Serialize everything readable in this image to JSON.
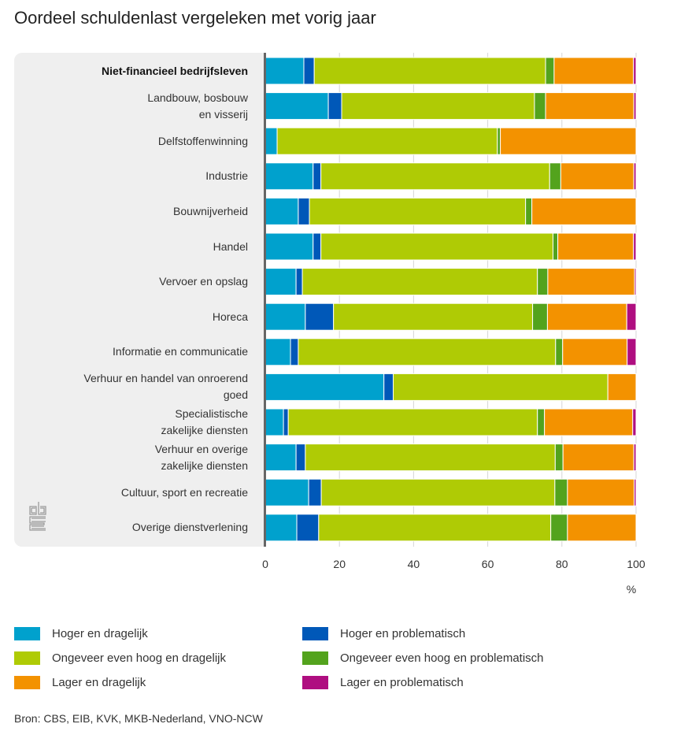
{
  "chart_data": {
    "type": "bar",
    "orientation": "horizontal",
    "stacked": true,
    "title": "Oordeel schuldenlast vergeleken met vorig jaar",
    "xlabel": "%",
    "ylabel": "",
    "xlim": [
      0,
      100
    ],
    "xticks": [
      "0",
      "20",
      "40",
      "60",
      "80",
      "100"
    ],
    "grid": true,
    "legend_position": "bottom",
    "categories": [
      "Niet-financieel bedrijfsleven",
      "Landbouw, bosbouw\nen visserij",
      "Delfstoffenwinning",
      "Industrie",
      "Bouwnijverheid",
      "Handel",
      "Vervoer en opslag",
      "Horeca",
      "Informatie en communicatie",
      "Verhuur en handel van onroerend\ngoed",
      "Specialistische\nzakelijke diensten",
      "Verhuur en overige\nzakelijke diensten",
      "Cultuur, sport en recreatie",
      "Overige dienstverlening"
    ],
    "bold_categories": [
      0
    ],
    "series": [
      {
        "name": "Hoger en dragelijk",
        "color": "#00a1cd",
        "values": [
          10.4,
          17.0,
          3.2,
          12.9,
          8.9,
          12.9,
          8.3,
          10.8,
          6.8,
          32.0,
          4.9,
          8.3,
          11.7,
          8.5
        ]
      },
      {
        "name": "Hoger en problematisch",
        "color": "#0058b8",
        "values": [
          2.8,
          3.6,
          0.0,
          2.1,
          3.0,
          2.1,
          1.7,
          7.6,
          2.1,
          2.5,
          1.3,
          2.5,
          3.4,
          5.9
        ]
      },
      {
        "name": "Ongeveer even hoog en dragelijk",
        "color": "#afcb05",
        "values": [
          62.4,
          52.0,
          59.4,
          61.7,
          58.3,
          62.6,
          63.4,
          53.7,
          69.4,
          57.9,
          67.2,
          67.4,
          63.0,
          62.6
        ]
      },
      {
        "name": "Ongeveer even hoog en problematisch",
        "color": "#53a31d",
        "values": [
          2.3,
          3.0,
          0.8,
          3.0,
          1.7,
          1.3,
          2.8,
          4.0,
          1.9,
          0.0,
          1.9,
          2.1,
          3.4,
          4.5
        ]
      },
      {
        "name": "Lager en dragelijk",
        "color": "#f39200",
        "values": [
          21.4,
          23.8,
          36.6,
          19.7,
          28.1,
          20.4,
          23.4,
          21.4,
          17.4,
          7.6,
          23.8,
          19.1,
          18.0,
          18.5
        ]
      },
      {
        "name": "Lager en problematisch",
        "color": "#af0e80",
        "values": [
          0.7,
          0.6,
          0.0,
          0.6,
          0.0,
          0.7,
          0.4,
          2.5,
          2.4,
          0.0,
          0.9,
          0.6,
          0.5,
          0.0
        ]
      }
    ],
    "source": "Bron: CBS, EIB, KVK, MKB-Nederland, VNO-NCW"
  },
  "logo": {
    "icon": "cbs-logo-icon"
  }
}
